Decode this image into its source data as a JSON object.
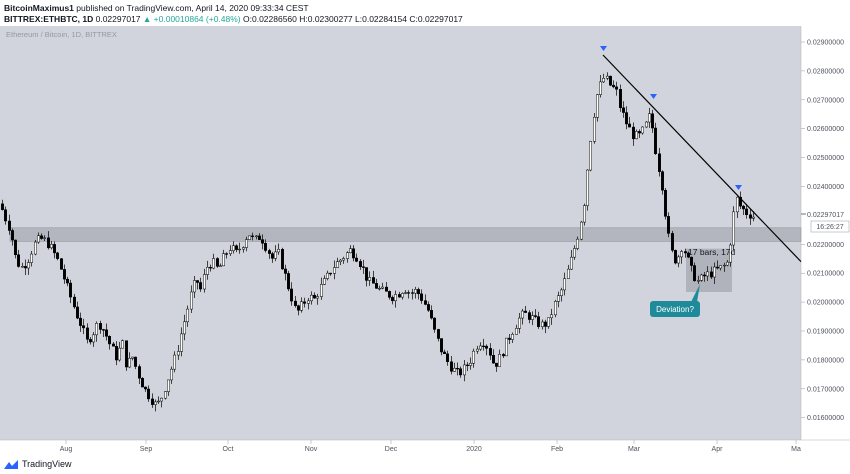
{
  "header": {
    "line1_user": "BitcoinMaximus1",
    "line1_rest": " published on TradingView.com, April 14, 2020 09:33:34 CEST",
    "line2_symbol": "BITTREX:ETHBTC, 1D",
    "line2_price": " 0.02297017",
    "line2_change": " ▲ +0.00010864 (+0.48%)",
    "line2_ohlc": " O:0.02286560 H:0.02300277 L:0.02284154 C:0.02297017"
  },
  "footer": {
    "brand": "TradingView"
  },
  "chart_data": {
    "type": "candlestick",
    "watermark": "Ethereum / Bitcoin, 1D, BITTREX",
    "y_tick_labels": [
      "0.02900000",
      "0.02800000",
      "0.02700000",
      "0.02600000",
      "0.02500000",
      "0.02400000",
      "0.02200000",
      "0.02100000",
      "0.02000000",
      "0.01900000",
      "0.01800000",
      "0.01700000",
      "0.01600000"
    ],
    "y_range": [
      0.0156,
      0.0292
    ],
    "x_tick_labels": [
      "Aug",
      "Sep",
      "Oct",
      "Nov",
      "Dec",
      "2020",
      "Feb",
      "Mar",
      "Apr",
      "Ma"
    ],
    "last_price": "0.02297017",
    "countdown": "16:26:27",
    "support_zone": [
      0.0221,
      0.02257
    ],
    "bars_range_label": "17 bars, 17d",
    "bars_range_zone": [
      0.02035,
      0.02185
    ],
    "callout": "Deviation?",
    "trendline_points": [
      [
        0.02855,
        "Feb"
      ],
      [
        0.0214,
        "Ma"
      ]
    ],
    "price_path": [
      [
        0,
        0.0234
      ],
      [
        4,
        0.023
      ],
      [
        10,
        0.0225
      ],
      [
        16,
        0.0214
      ],
      [
        22,
        0.0212
      ],
      [
        28,
        0.0215
      ],
      [
        34,
        0.022
      ],
      [
        40,
        0.0222
      ],
      [
        46,
        0.0221
      ],
      [
        52,
        0.0218
      ],
      [
        58,
        0.0214
      ],
      [
        64,
        0.0208
      ],
      [
        70,
        0.0202
      ],
      [
        76,
        0.0196
      ],
      [
        82,
        0.0191
      ],
      [
        86,
        0.0186
      ],
      [
        92,
        0.0189
      ],
      [
        98,
        0.0193
      ],
      [
        104,
        0.019
      ],
      [
        110,
        0.0185
      ],
      [
        116,
        0.0181
      ],
      [
        122,
        0.0186
      ],
      [
        126,
        0.0178
      ],
      [
        132,
        0.0181
      ],
      [
        138,
        0.0175
      ],
      [
        144,
        0.017
      ],
      [
        150,
        0.0167
      ],
      [
        156,
        0.0164
      ],
      [
        160,
        0.0166
      ],
      [
        166,
        0.0172
      ],
      [
        172,
        0.0178
      ],
      [
        176,
        0.0182
      ],
      [
        180,
        0.0188
      ],
      [
        186,
        0.0196
      ],
      [
        190,
        0.0202
      ],
      [
        196,
        0.0208
      ],
      [
        200,
        0.0204
      ],
      [
        206,
        0.0212
      ],
      [
        212,
        0.0214
      ],
      [
        218,
        0.0211
      ],
      [
        224,
        0.0216
      ],
      [
        230,
        0.0219
      ],
      [
        236,
        0.0217
      ],
      [
        242,
        0.022
      ],
      [
        248,
        0.0224
      ],
      [
        254,
        0.0221
      ],
      [
        260,
        0.0223
      ],
      [
        266,
        0.0219
      ],
      [
        272,
        0.0215
      ],
      [
        278,
        0.0217
      ],
      [
        284,
        0.021
      ],
      [
        290,
        0.0203
      ],
      [
        296,
        0.0196
      ],
      [
        302,
        0.0199
      ],
      [
        308,
        0.0202
      ],
      [
        314,
        0.0201
      ],
      [
        320,
        0.0205
      ],
      [
        326,
        0.0208
      ],
      [
        332,
        0.0212
      ],
      [
        338,
        0.0214
      ],
      [
        344,
        0.0216
      ],
      [
        350,
        0.0218
      ],
      [
        356,
        0.0216
      ],
      [
        362,
        0.0212
      ],
      [
        368,
        0.0207
      ],
      [
        374,
        0.0206
      ],
      [
        380,
        0.0204
      ],
      [
        386,
        0.0203
      ],
      [
        392,
        0.0202
      ],
      [
        398,
        0.0203
      ],
      [
        404,
        0.0205
      ],
      [
        410,
        0.0203
      ],
      [
        416,
        0.0204
      ],
      [
        422,
        0.0201
      ],
      [
        428,
        0.0197
      ],
      [
        434,
        0.019
      ],
      [
        440,
        0.0184
      ],
      [
        446,
        0.018
      ],
      [
        452,
        0.0177
      ],
      [
        458,
        0.0175
      ],
      [
        464,
        0.0177
      ],
      [
        470,
        0.018
      ],
      [
        476,
        0.0185
      ],
      [
        482,
        0.0187
      ],
      [
        488,
        0.0184
      ],
      [
        494,
        0.0178
      ],
      [
        500,
        0.0181
      ],
      [
        506,
        0.0186
      ],
      [
        512,
        0.019
      ],
      [
        518,
        0.0194
      ],
      [
        524,
        0.0196
      ],
      [
        530,
        0.0195
      ],
      [
        536,
        0.0193
      ],
      [
        542,
        0.0192
      ],
      [
        548,
        0.0193
      ],
      [
        554,
        0.0199
      ],
      [
        560,
        0.0203
      ],
      [
        566,
        0.0209
      ],
      [
        572,
        0.0216
      ],
      [
        578,
        0.0224
      ],
      [
        584,
        0.0235
      ],
      [
        588,
        0.025
      ],
      [
        592,
        0.0262
      ],
      [
        596,
        0.0271
      ],
      [
        600,
        0.0275
      ],
      [
        604,
        0.0278
      ],
      [
        610,
        0.0275
      ],
      [
        616,
        0.0273
      ],
      [
        620,
        0.0267
      ],
      [
        626,
        0.0262
      ],
      [
        632,
        0.0258
      ],
      [
        638,
        0.0257
      ],
      [
        644,
        0.026
      ],
      [
        650,
        0.0265
      ],
      [
        656,
        0.0251
      ],
      [
        662,
        0.024
      ],
      [
        666,
        0.0228
      ],
      [
        670,
        0.0218
      ],
      [
        676,
        0.0214
      ],
      [
        682,
        0.022
      ],
      [
        686,
        0.0216
      ],
      [
        692,
        0.021
      ],
      [
        698,
        0.0207
      ],
      [
        704,
        0.0209
      ],
      [
        710,
        0.021
      ],
      [
        716,
        0.0211
      ],
      [
        722,
        0.0212
      ],
      [
        728,
        0.0214
      ],
      [
        732,
        0.0228
      ],
      [
        736,
        0.0236
      ],
      [
        740,
        0.0233
      ],
      [
        746,
        0.0231
      ],
      [
        752,
        0.023
      ],
      [
        755,
        0.0229
      ]
    ]
  }
}
